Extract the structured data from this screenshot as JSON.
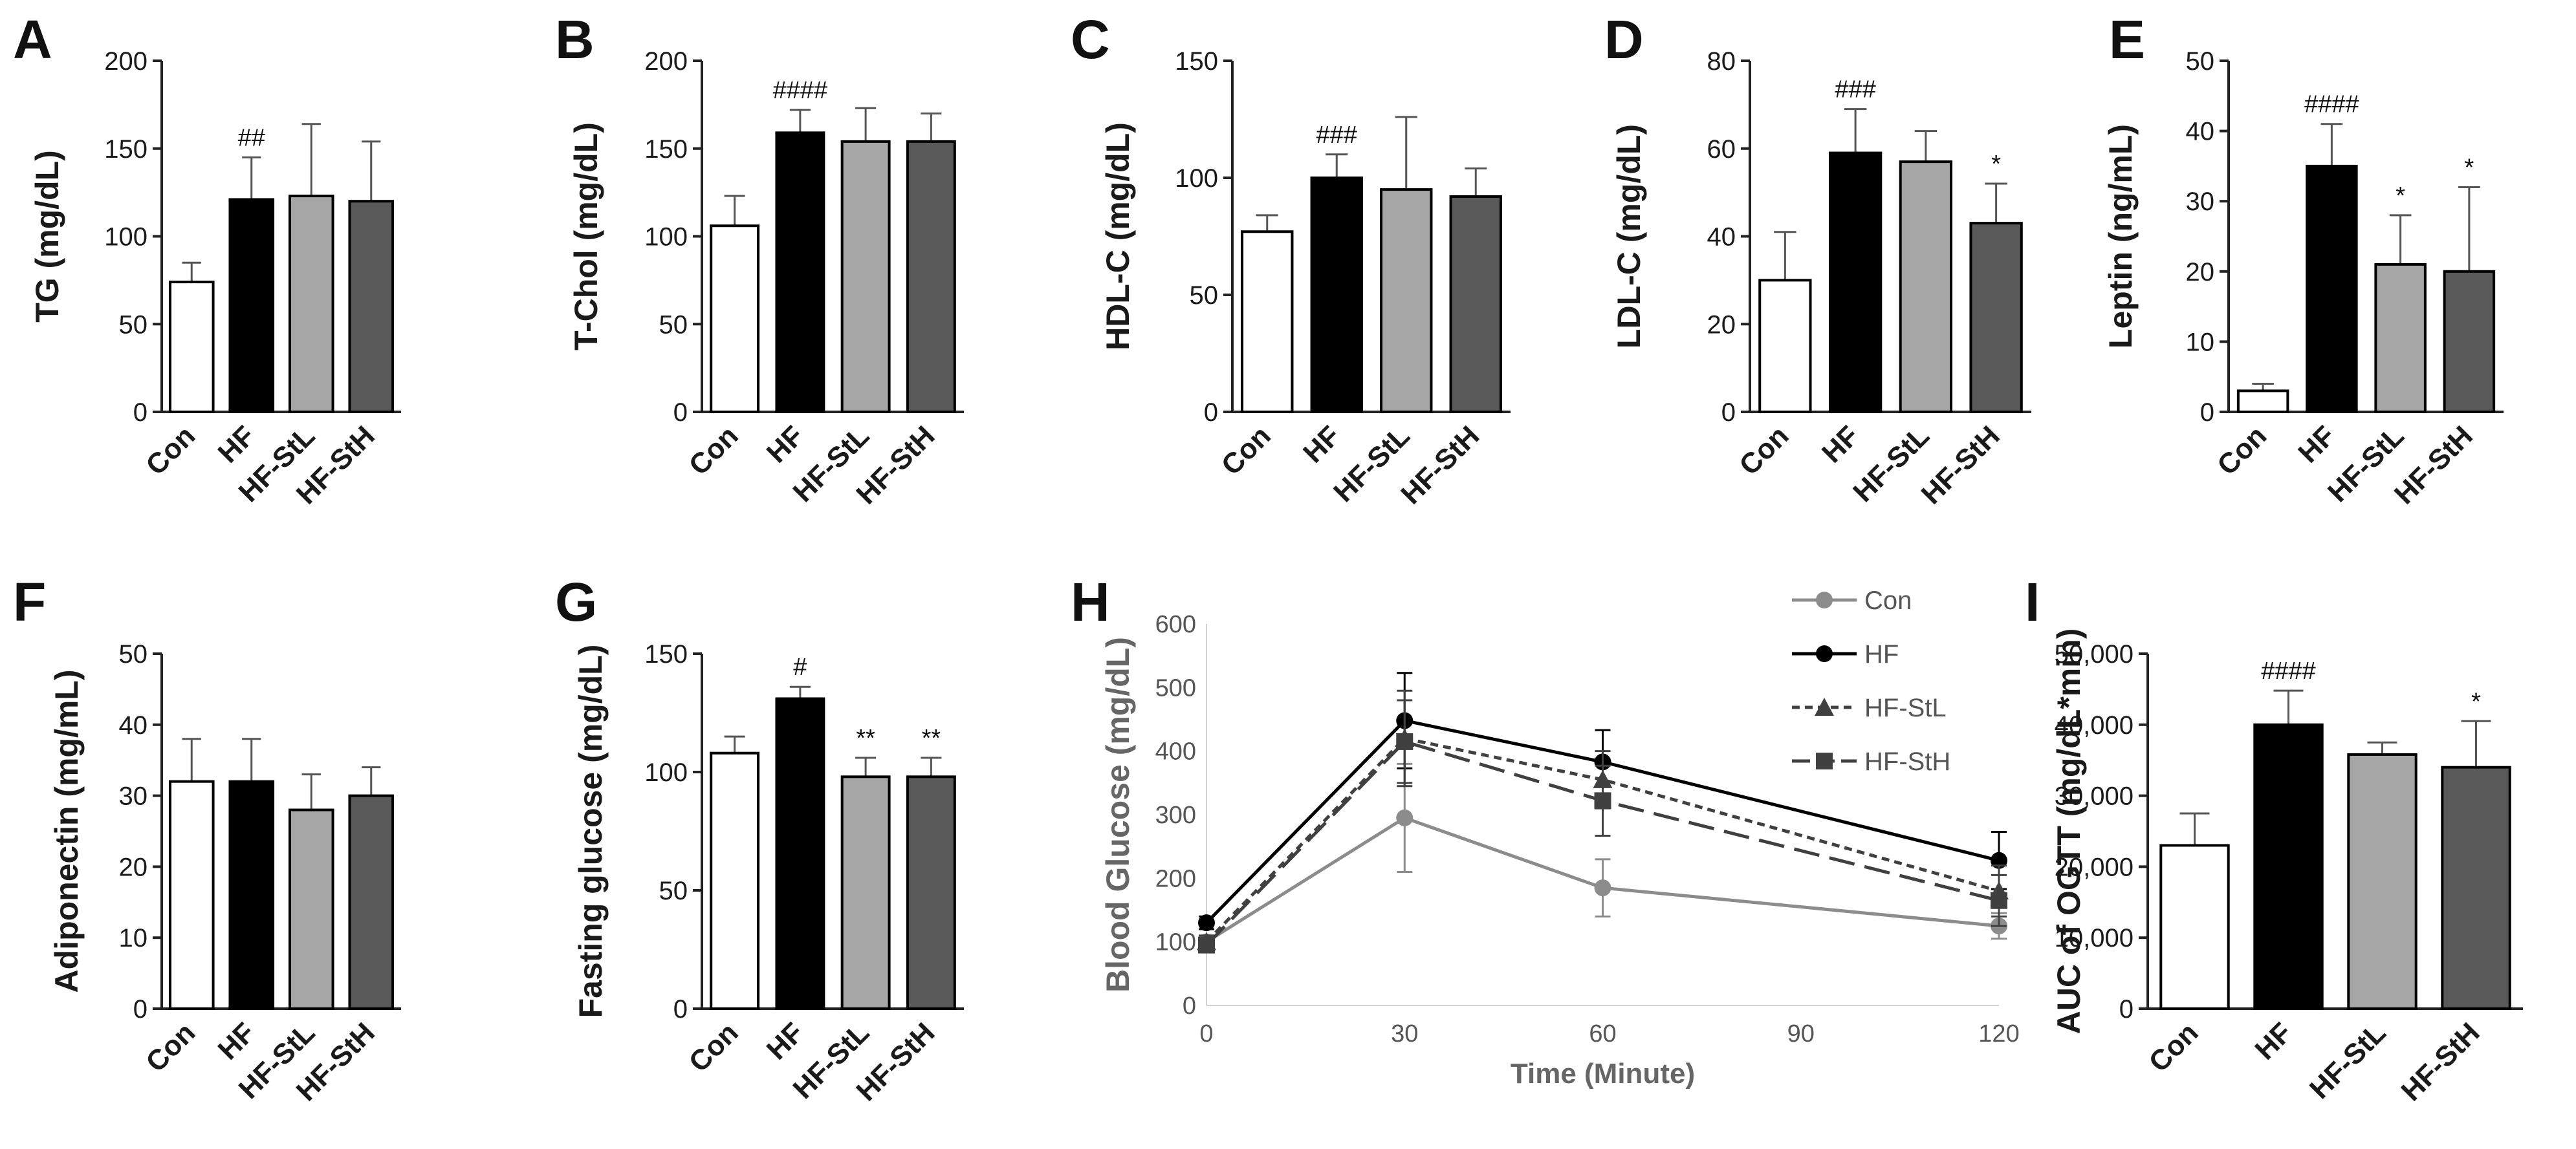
{
  "colors": {
    "Con": "#ffffff",
    "HF": "#000000",
    "HF-StL": "#a6a6a6",
    "HF-StH": "#595959",
    "line_Con": "#8c8c8c",
    "line_HF": "#000000",
    "line_HF-StL": "#404040",
    "line_HF-StH": "#404040"
  },
  "chart_data": [
    {
      "panel": "A",
      "type": "bar",
      "categories": [
        "Con",
        "HF",
        "HF-StL",
        "HF-StH"
      ],
      "values": [
        74,
        121,
        123,
        120
      ],
      "errors": [
        11,
        24,
        41,
        34
      ],
      "annotations": [
        "",
        "##",
        "",
        ""
      ],
      "ylabel": "TG (mg/dL)",
      "ylim": [
        0,
        200
      ],
      "yticks": [
        "0",
        "50",
        "100",
        "150",
        "200"
      ],
      "tick_values": [
        0,
        50,
        100,
        150,
        200
      ]
    },
    {
      "panel": "B",
      "type": "bar",
      "categories": [
        "Con",
        "HF",
        "HF-StL",
        "HF-StH"
      ],
      "values": [
        106,
        159,
        154,
        154
      ],
      "errors": [
        17,
        13,
        19,
        16
      ],
      "annotations": [
        "",
        "####",
        "",
        ""
      ],
      "ylabel": "T-Chol (mg/dL)",
      "ylim": [
        0,
        200
      ],
      "yticks": [
        "0",
        "50",
        "100",
        "150",
        "200"
      ],
      "tick_values": [
        0,
        50,
        100,
        150,
        200
      ]
    },
    {
      "panel": "C",
      "type": "bar",
      "categories": [
        "Con",
        "HF",
        "HF-StL",
        "HF-StH"
      ],
      "values": [
        77,
        100,
        95,
        92
      ],
      "errors": [
        7,
        10,
        31,
        12
      ],
      "annotations": [
        "",
        "###",
        "",
        ""
      ],
      "ylabel": "HDL-C (mg/dL)",
      "ylim": [
        0,
        150
      ],
      "yticks": [
        "0",
        "50",
        "100",
        "150"
      ],
      "tick_values": [
        0,
        50,
        100,
        150
      ]
    },
    {
      "panel": "D",
      "type": "bar",
      "categories": [
        "Con",
        "HF",
        "HF-StL",
        "HF-StH"
      ],
      "values": [
        30,
        59,
        57,
        43
      ],
      "errors": [
        11,
        10,
        7,
        9
      ],
      "annotations": [
        "",
        "###",
        "",
        "*"
      ],
      "ylabel": "LDL-C (mg/dL)",
      "ylim": [
        0,
        80
      ],
      "yticks": [
        "0",
        "20",
        "40",
        "60",
        "80"
      ],
      "tick_values": [
        0,
        20,
        40,
        60,
        80
      ]
    },
    {
      "panel": "E",
      "type": "bar",
      "categories": [
        "Con",
        "HF",
        "HF-StL",
        "HF-StH"
      ],
      "values": [
        3,
        35,
        21,
        20
      ],
      "errors": [
        1,
        6,
        7,
        12
      ],
      "annotations": [
        "",
        "####",
        "*",
        "*"
      ],
      "ylabel": "Leptin (ng/mL)",
      "ylim": [
        0,
        50
      ],
      "yticks": [
        "0",
        "10",
        "20",
        "30",
        "40",
        "50"
      ],
      "tick_values": [
        0,
        10,
        20,
        30,
        40,
        50
      ]
    },
    {
      "panel": "F",
      "type": "bar",
      "categories": [
        "Con",
        "HF",
        "HF-StL",
        "HF-StH"
      ],
      "values": [
        32,
        32,
        28,
        30
      ],
      "errors": [
        6,
        6,
        5,
        4
      ],
      "annotations": [
        "",
        "",
        "",
        ""
      ],
      "ylabel": "Adiponectin (mg/mL)",
      "ylim": [
        0,
        50
      ],
      "yticks": [
        "0",
        "10",
        "20",
        "30",
        "40",
        "50"
      ],
      "tick_values": [
        0,
        10,
        20,
        30,
        40,
        50
      ]
    },
    {
      "panel": "G",
      "type": "bar",
      "categories": [
        "Con",
        "HF",
        "HF-StL",
        "HF-StH"
      ],
      "values": [
        108,
        131,
        98,
        98
      ],
      "errors": [
        7,
        5,
        8,
        8
      ],
      "annotations": [
        "",
        "#",
        "**",
        "**"
      ],
      "ylabel": "Fasting glucose (mg/dL)",
      "ylim": [
        0,
        150
      ],
      "yticks": [
        "0",
        "50",
        "100",
        "150"
      ],
      "tick_values": [
        0,
        50,
        100,
        150
      ]
    },
    {
      "panel": "H",
      "type": "line",
      "x": [
        0,
        30,
        60,
        120
      ],
      "series": [
        {
          "name": "Con",
          "values": [
            100,
            295,
            185,
            125
          ],
          "errors": [
            10,
            85,
            45,
            20
          ]
        },
        {
          "name": "HF",
          "values": [
            130,
            448,
            383,
            228
          ],
          "errors": [
            10,
            75,
            50,
            45
          ]
        },
        {
          "name": "HF-StL",
          "values": [
            100,
            420,
            355,
            180
          ],
          "errors": [
            10,
            75,
            45,
            40
          ]
        },
        {
          "name": "HF-StH",
          "values": [
            95,
            415,
            322,
            165
          ],
          "errors": [
            10,
            65,
            55,
            40
          ]
        }
      ],
      "xlabel": "Time (Minute)",
      "ylabel": "Blood Glucose (mg/dL)",
      "xlim": [
        0,
        120
      ],
      "ylim": [
        0,
        600
      ],
      "xticks": [
        "0",
        "30",
        "60",
        "90",
        "120"
      ],
      "xtick_values": [
        0,
        30,
        60,
        90,
        120
      ],
      "yticks": [
        "0",
        "100",
        "200",
        "300",
        "400",
        "500",
        "600"
      ],
      "tick_values": [
        0,
        100,
        200,
        300,
        400,
        500,
        600
      ]
    },
    {
      "panel": "I",
      "type": "bar",
      "categories": [
        "Con",
        "HF",
        "HF-StL",
        "HF-StH"
      ],
      "values": [
        23000,
        40000,
        35800,
        34000
      ],
      "errors": [
        4500,
        4800,
        1700,
        6500
      ],
      "annotations": [
        "",
        "####",
        "",
        "*"
      ],
      "ylabel": "AUC of OGTT (mg/dL*min)",
      "ylim": [
        0,
        50000
      ],
      "yticks": [
        "0",
        "10,000",
        "20,000",
        "30,000",
        "40,000",
        "50,000"
      ],
      "tick_values": [
        0,
        10000,
        20000,
        30000,
        40000,
        50000
      ]
    }
  ]
}
